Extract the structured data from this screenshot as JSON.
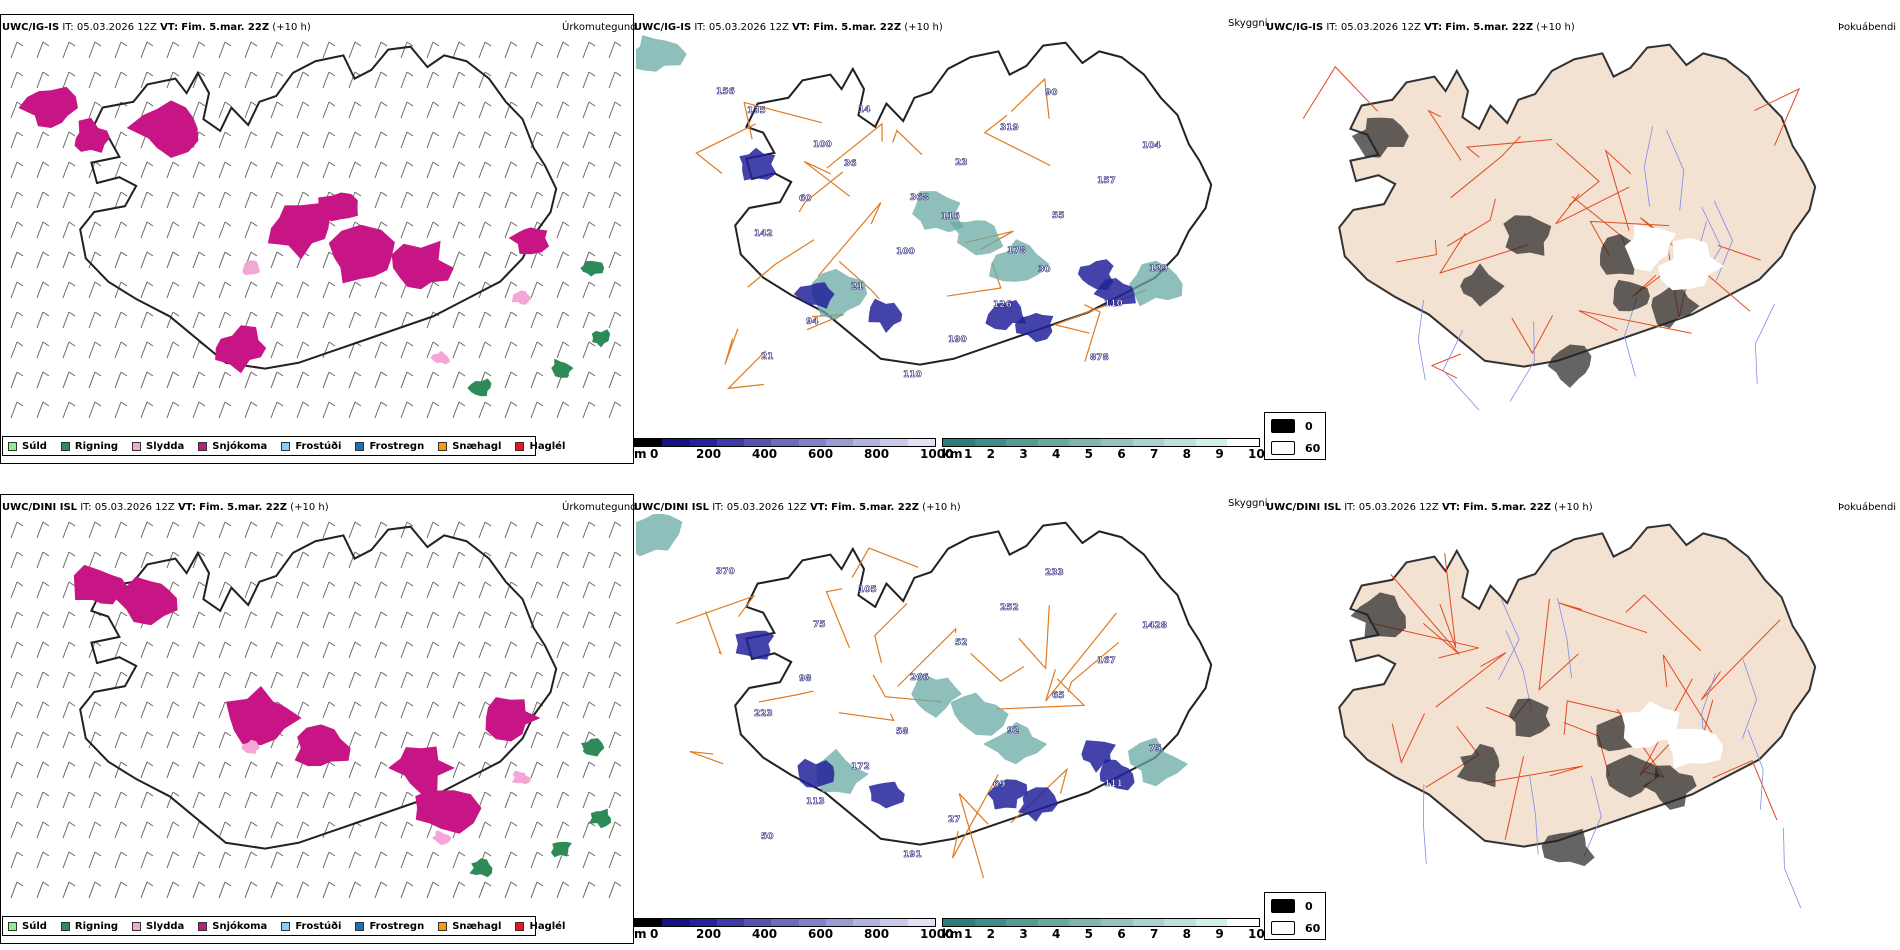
{
  "rows": [
    {
      "model": "UWC/IG-IS",
      "it_label": "IT:",
      "it_value": "05.03.2026 12Z",
      "vt_label": "VT:",
      "vt_value": "Fim. 5.mar. 22Z",
      "lead": "(+10 h)",
      "field_precip": "Úrkomutegund",
      "field_cloud": "Skyggni",
      "field_fog": "Þokuábendi",
      "cloud_labels": [
        "156",
        "100",
        "368",
        "178",
        "110",
        "21",
        "14",
        "23",
        "55",
        "129",
        "94",
        "110",
        "319",
        "157",
        "142",
        "21",
        "190",
        "90",
        "104",
        "60",
        "100",
        "126",
        "878",
        "135",
        "36",
        "116",
        "30"
      ]
    },
    {
      "model": "UWC/DINI ISL",
      "it_label": "IT:",
      "it_value": "05.03.2026 12Z",
      "vt_label": "VT:",
      "vt_value": "Fim. 5.mar. 22Z",
      "lead": "(+10 h)",
      "field_precip": "Úrkomutegund",
      "field_cloud": "Skyggni",
      "field_fog": "Þokuábendi",
      "cloud_labels": [
        "370",
        "75",
        "206",
        "92",
        "111",
        "50",
        "105",
        "52",
        "65",
        "75",
        "113",
        "191",
        "252",
        "167",
        "223",
        "172",
        "27",
        "233",
        "1428",
        "98",
        "58",
        "69"
      ]
    }
  ],
  "precip_legend": [
    {
      "label": "Súld",
      "color": "#90ee90"
    },
    {
      "label": "Rigning",
      "color": "#2e8b57"
    },
    {
      "label": "Slydda",
      "color": "#f4a6d7"
    },
    {
      "label": "Snjókoma",
      "color": "#c71585"
    },
    {
      "label": "Frostúði",
      "color": "#87cefa"
    },
    {
      "label": "Frostregn",
      "color": "#1e6fb5"
    },
    {
      "label": "Snæhagl",
      "color": "#ff9900"
    },
    {
      "label": "Haglél",
      "color": "#e31a1c"
    }
  ],
  "cloudbase_bar": {
    "unit": "m",
    "ticks": [
      "0",
      "200",
      "400",
      "600",
      "800",
      "1000"
    ],
    "colors": [
      "#000000",
      "#141482",
      "#22229a",
      "#3a3aa8",
      "#5252b4",
      "#6a6abf",
      "#8282ca",
      "#9a9ad5",
      "#b2b2e0",
      "#cacaeb",
      "#e2e2f5"
    ]
  },
  "visibility_bar": {
    "unit": "km",
    "ticks": [
      "1",
      "2",
      "3",
      "4",
      "5",
      "6",
      "7",
      "8",
      "9",
      "10"
    ],
    "colors": [
      "#2a7f7a",
      "#3f8d88",
      "#549b96",
      "#69a9a4",
      "#7eb7b2",
      "#93c5c0",
      "#a8d3ce",
      "#bde1dc",
      "#d2efea",
      "#ffffff"
    ]
  },
  "fog_legend": [
    {
      "label": "0",
      "color": "#000000"
    },
    {
      "label": "60",
      "color": "#ffffff"
    }
  ]
}
